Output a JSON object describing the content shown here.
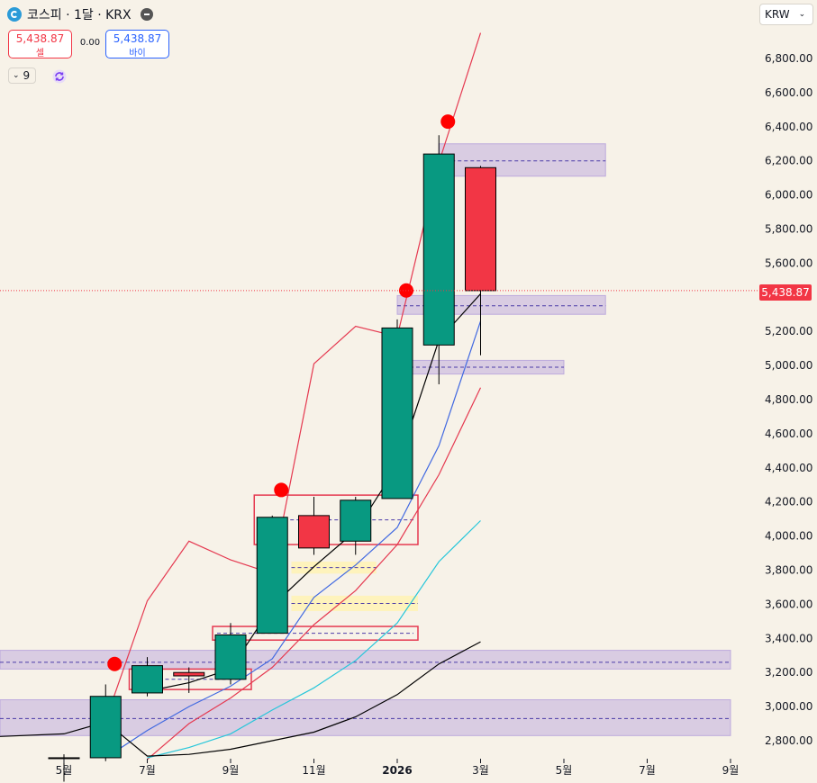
{
  "header": {
    "symbol_title": "코스피 · 1달 · KRX",
    "sell_price": "5,438.87",
    "sell_label": "셀",
    "spread": "0.00",
    "buy_price": "5,438.87",
    "buy_label": "바이",
    "indicator_count": "9",
    "currency": "KRW"
  },
  "axis": {
    "y_ticks": [
      "6,800.00",
      "6,600.00",
      "6,400.00",
      "6,200.00",
      "6,000.00",
      "5,800.00",
      "5,600.00",
      "5,400.00",
      "5,200.00",
      "5,000.00",
      "4,800.00",
      "4,600.00",
      "4,400.00",
      "4,200.00",
      "4,000.00",
      "3,800.00",
      "3,600.00",
      "3,400.00",
      "3,200.00",
      "3,000.00",
      "2,800.00"
    ],
    "x_ticks": [
      "5월",
      "7월",
      "9월",
      "11월",
      "2026",
      "3월",
      "5월",
      "7월",
      "9월"
    ],
    "current_price_label": "5,438.87"
  },
  "colors": {
    "up": "#089981",
    "down": "#f23645",
    "background": "#f7f2e8",
    "zone": "#b39ddb"
  },
  "chart_data": {
    "type": "candlestick",
    "period": "1 month",
    "current_price": 5438.87,
    "ylim": [
      2700,
      6950
    ],
    "candles": [
      {
        "month": "2025-05",
        "open": 2700,
        "high": 2720,
        "low": 2560,
        "close": 2700
      },
      {
        "month": "2025-06",
        "open": 2700,
        "high": 3130,
        "low": 2680,
        "close": 3060
      },
      {
        "month": "2025-07",
        "open": 3080,
        "high": 3290,
        "low": 3060,
        "close": 3240
      },
      {
        "month": "2025-08",
        "open": 3200,
        "high": 3230,
        "low": 3080,
        "close": 3180
      },
      {
        "month": "2025-09",
        "open": 3160,
        "high": 3490,
        "low": 3130,
        "close": 3420
      },
      {
        "month": "2025-10",
        "open": 3430,
        "high": 4120,
        "low": 3430,
        "close": 4110
      },
      {
        "month": "2025-11",
        "open": 4120,
        "high": 4230,
        "low": 3890,
        "close": 3930
      },
      {
        "month": "2025-12",
        "open": 3970,
        "high": 4230,
        "low": 3890,
        "close": 4210
      },
      {
        "month": "2026-01",
        "open": 4220,
        "high": 5270,
        "low": 4220,
        "close": 5220
      },
      {
        "month": "2026-02",
        "open": 5120,
        "high": 6350,
        "low": 4890,
        "close": 6240
      },
      {
        "month": "2026-03",
        "open": 6160,
        "high": 6170,
        "low": 5060,
        "close": 5438.87
      }
    ],
    "high_markers": [
      {
        "month": "2025-06",
        "price": 3250
      },
      {
        "month": "2025-10",
        "price": 4270
      },
      {
        "month": "2026-01",
        "price": 5440
      },
      {
        "month": "2026-02",
        "price": 6430
      }
    ],
    "zones": [
      {
        "from": "2026-02",
        "to": "2026-06",
        "low": 6110,
        "high": 6300,
        "mid": 6200
      },
      {
        "from": "2026-01",
        "to": "2026-06",
        "low": 5300,
        "high": 5410,
        "mid": 5350
      },
      {
        "from": "2026-01",
        "to": "2026-05",
        "low": 4950,
        "high": 5030,
        "mid": 4990
      },
      {
        "from": "2025-03",
        "to": "2026-09",
        "low": 3220,
        "high": 3330,
        "mid": 3260
      },
      {
        "from": "2025-03",
        "to": "2026-09",
        "low": 2830,
        "high": 3040,
        "mid": 2930
      }
    ],
    "series": [
      {
        "color": "#e53950",
        "points": [
          [
            "2025-06",
            2920
          ],
          [
            "2025-07",
            3620
          ],
          [
            "2025-08",
            3970
          ],
          [
            "2025-09",
            3860
          ],
          [
            "2025-10",
            3780
          ],
          [
            "2025-11",
            5010
          ],
          [
            "2025-12",
            5230
          ],
          [
            "2026-01",
            5170
          ],
          [
            "2026-02",
            6190
          ],
          [
            "2026-03",
            6950
          ]
        ]
      },
      {
        "color": "#e53950",
        "points": [
          [
            "2025-07",
            2690
          ],
          [
            "2025-08",
            2900
          ],
          [
            "2025-09",
            3050
          ],
          [
            "2025-10",
            3230
          ],
          [
            "2025-11",
            3480
          ],
          [
            "2025-12",
            3680
          ],
          [
            "2026-01",
            3950
          ],
          [
            "2026-02",
            4360
          ],
          [
            "2026-03",
            4870
          ]
        ]
      },
      {
        "color": "#4169e1",
        "points": [
          [
            "2025-06",
            2700
          ],
          [
            "2025-07",
            2860
          ],
          [
            "2025-08",
            3000
          ],
          [
            "2025-09",
            3120
          ],
          [
            "2025-10",
            3280
          ],
          [
            "2025-11",
            3640
          ],
          [
            "2025-12",
            3830
          ],
          [
            "2026-01",
            4050
          ],
          [
            "2026-02",
            4530
          ],
          [
            "2026-03",
            5260
          ]
        ]
      },
      {
        "color": "#26c6da",
        "points": [
          [
            "2025-07",
            2700
          ],
          [
            "2025-08",
            2760
          ],
          [
            "2025-09",
            2840
          ],
          [
            "2025-10",
            2980
          ],
          [
            "2025-11",
            3110
          ],
          [
            "2025-12",
            3270
          ],
          [
            "2026-01",
            3490
          ],
          [
            "2026-02",
            3850
          ],
          [
            "2026-03",
            4090
          ]
        ]
      },
      {
        "color": "#000000",
        "points": [
          [
            "2025-03",
            2820
          ],
          [
            "2025-05",
            2840
          ],
          [
            "2025-06",
            2910
          ],
          [
            "2025-07",
            2710
          ],
          [
            "2025-08",
            2720
          ],
          [
            "2025-09",
            2750
          ],
          [
            "2025-10",
            2800
          ],
          [
            "2025-11",
            2850
          ],
          [
            "2025-12",
            2940
          ],
          [
            "2026-01",
            3070
          ],
          [
            "2026-02",
            3250
          ],
          [
            "2026-03",
            3380
          ]
        ]
      },
      {
        "color": "#000000",
        "points": [
          [
            "2025-07",
            3090
          ],
          [
            "2025-08",
            3140
          ],
          [
            "2025-09",
            3220
          ],
          [
            "2025-10",
            3590
          ],
          [
            "2025-11",
            3820
          ],
          [
            "2025-12",
            4030
          ],
          [
            "2026-01",
            4410
          ],
          [
            "2026-02",
            5150
          ],
          [
            "2026-03",
            5420
          ]
        ]
      }
    ],
    "annotations": [
      {
        "kind": "red-box",
        "from": "2025-07",
        "to": "2025-09",
        "low": 3100,
        "high": 3220
      },
      {
        "kind": "red-box",
        "from": "2025-10",
        "to": "2026-01",
        "low": 3950,
        "high": 4240
      },
      {
        "kind": "red-box",
        "from": "2025-09",
        "to": "2026-01",
        "low": 3390,
        "high": 3470
      },
      {
        "kind": "yellow-zone",
        "from": "2025-11",
        "to": "2025-12",
        "low": 3780,
        "high": 3850
      },
      {
        "kind": "yellow-zone",
        "from": "2025-11",
        "to": "2026-01",
        "low": 3560,
        "high": 3650
      }
    ]
  }
}
